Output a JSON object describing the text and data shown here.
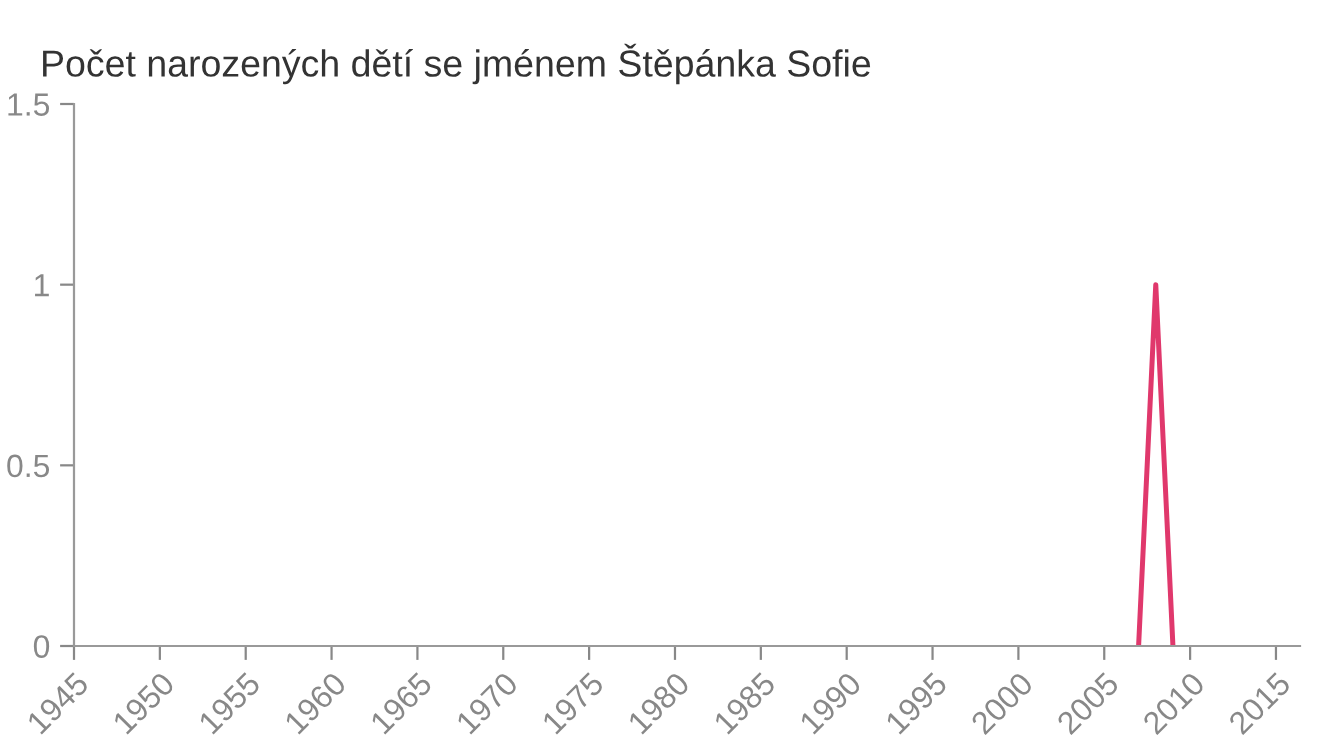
{
  "chart_data": {
    "type": "line",
    "title": "Počet narozených dětí se jménem Štěpánka Sofie",
    "x": [
      2007,
      2008,
      2009
    ],
    "series": [
      {
        "color": "#e0386c",
        "values": [
          0,
          1,
          0
        ]
      }
    ],
    "xlim": [
      1945,
      2016.4
    ],
    "xticks": [
      1945,
      1950,
      1955,
      1960,
      1965,
      1970,
      1975,
      1980,
      1985,
      1990,
      1995,
      2000,
      2005,
      2010,
      2015
    ],
    "ylim": [
      0,
      1.5
    ],
    "yticks": [
      0,
      0.5,
      1,
      1.5
    ],
    "grid": false,
    "legend": false,
    "marker": "none",
    "line_style": "solid"
  }
}
